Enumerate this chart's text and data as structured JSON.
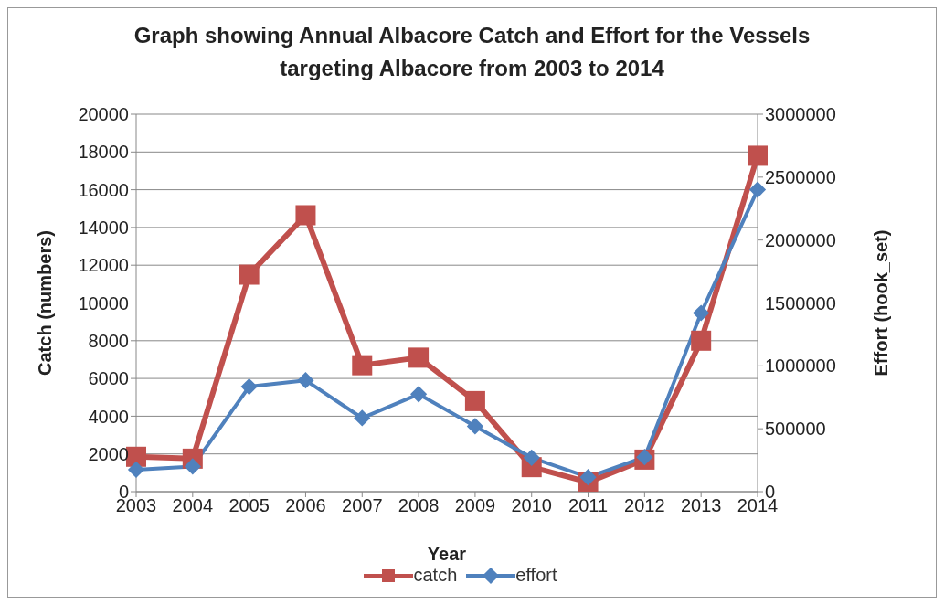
{
  "chart_data": {
    "type": "line",
    "title": "Graph showing Annual Albacore Catch and Effort for the Vessels targeting Albacore from 2003 to 2014",
    "xlabel": "Year",
    "ylabel": "Catch (numbers)",
    "y2label": "Effort (hook_set)",
    "categories": [
      "2003",
      "2004",
      "2005",
      "2006",
      "2007",
      "2008",
      "2009",
      "2010",
      "2011",
      "2012",
      "2013",
      "2014"
    ],
    "series": [
      {
        "name": "catch",
        "color": "#c0504d",
        "marker": "square",
        "values": [
          1850,
          1750,
          11500,
          14650,
          6700,
          7100,
          4800,
          1300,
          500,
          1700,
          8000,
          17800
        ]
      },
      {
        "name": "effort",
        "color": "#4f81bd",
        "marker": "diamond",
        "axis": "y2",
        "values": [
          175000,
          200000,
          835000,
          885000,
          585000,
          775000,
          520000,
          270000,
          115000,
          275000,
          1420000,
          2400000
        ]
      }
    ],
    "ylim": [
      0,
      20000
    ],
    "yticks": [
      0,
      2000,
      4000,
      6000,
      8000,
      10000,
      12000,
      14000,
      16000,
      18000,
      20000
    ],
    "y2lim": [
      0,
      3000000
    ],
    "y2ticks": [
      0,
      500000,
      1000000,
      1500000,
      2000000,
      2500000,
      3000000
    ],
    "grid": "y",
    "legend": "bottom",
    "line_style": "solid"
  }
}
